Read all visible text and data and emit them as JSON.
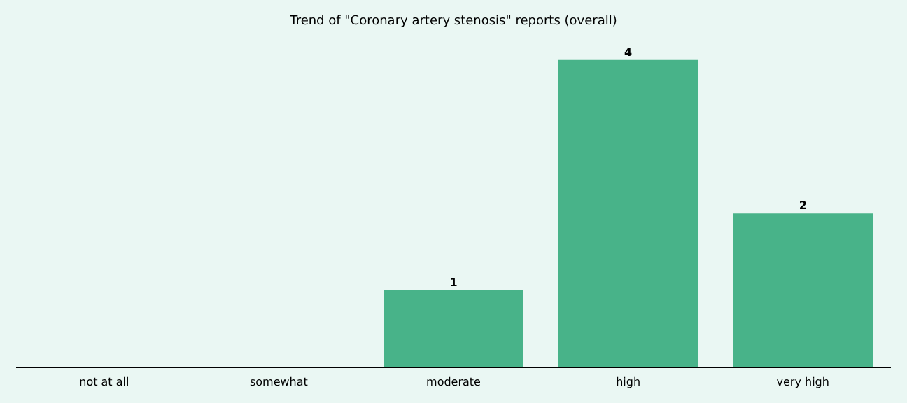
{
  "chart_data": {
    "type": "bar",
    "title": "Trend of \"Coronary artery stenosis\" reports (overall)",
    "categories": [
      "not at all",
      "somewhat",
      "moderate",
      "high",
      "very high"
    ],
    "values": [
      0,
      0,
      1,
      4,
      2
    ],
    "value_labels": [
      null,
      null,
      "1",
      "4",
      "2"
    ],
    "color": "#48b389",
    "grid": false,
    "legend": false,
    "tick_labels": "x"
  }
}
